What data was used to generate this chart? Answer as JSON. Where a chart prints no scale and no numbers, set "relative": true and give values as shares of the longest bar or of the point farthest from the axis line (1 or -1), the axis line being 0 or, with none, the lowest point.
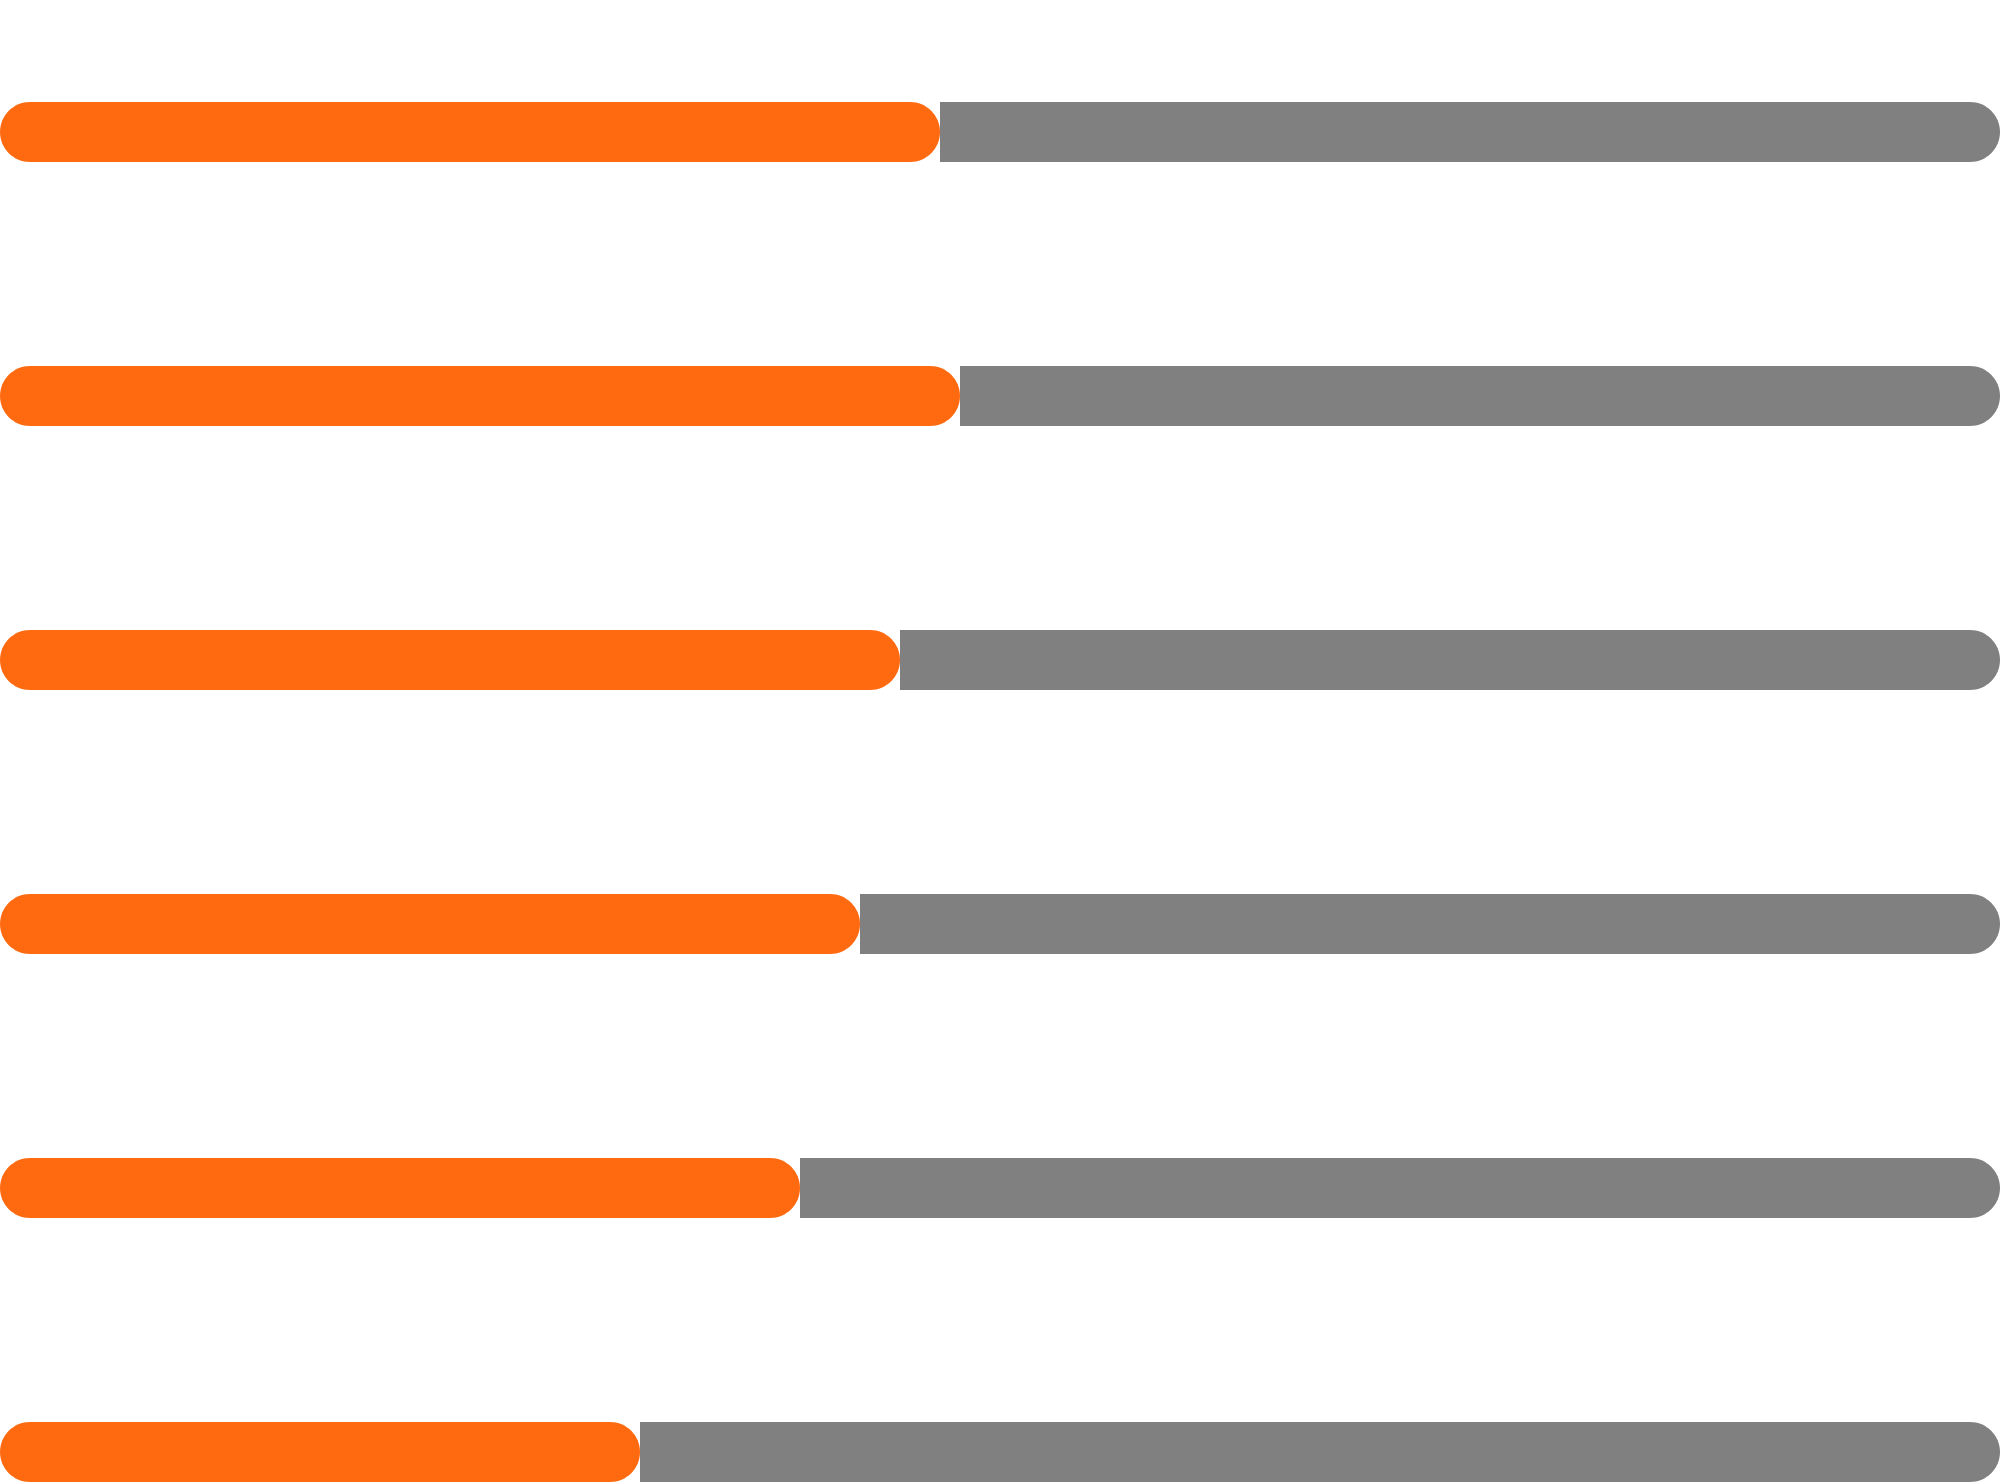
{
  "chart_data": {
    "type": "bar",
    "orientation": "horizontal",
    "stacked": true,
    "relative": true,
    "categories": [
      null,
      null,
      null,
      null,
      null,
      null
    ],
    "series": [
      {
        "color": "#ff6a10",
        "values": [
          0.47,
          0.48,
          0.45,
          0.43,
          0.4,
          0.32
        ]
      },
      {
        "color": "#808080",
        "values": [
          0.53,
          0.52,
          0.55,
          0.57,
          0.6,
          0.68
        ]
      }
    ]
  }
}
